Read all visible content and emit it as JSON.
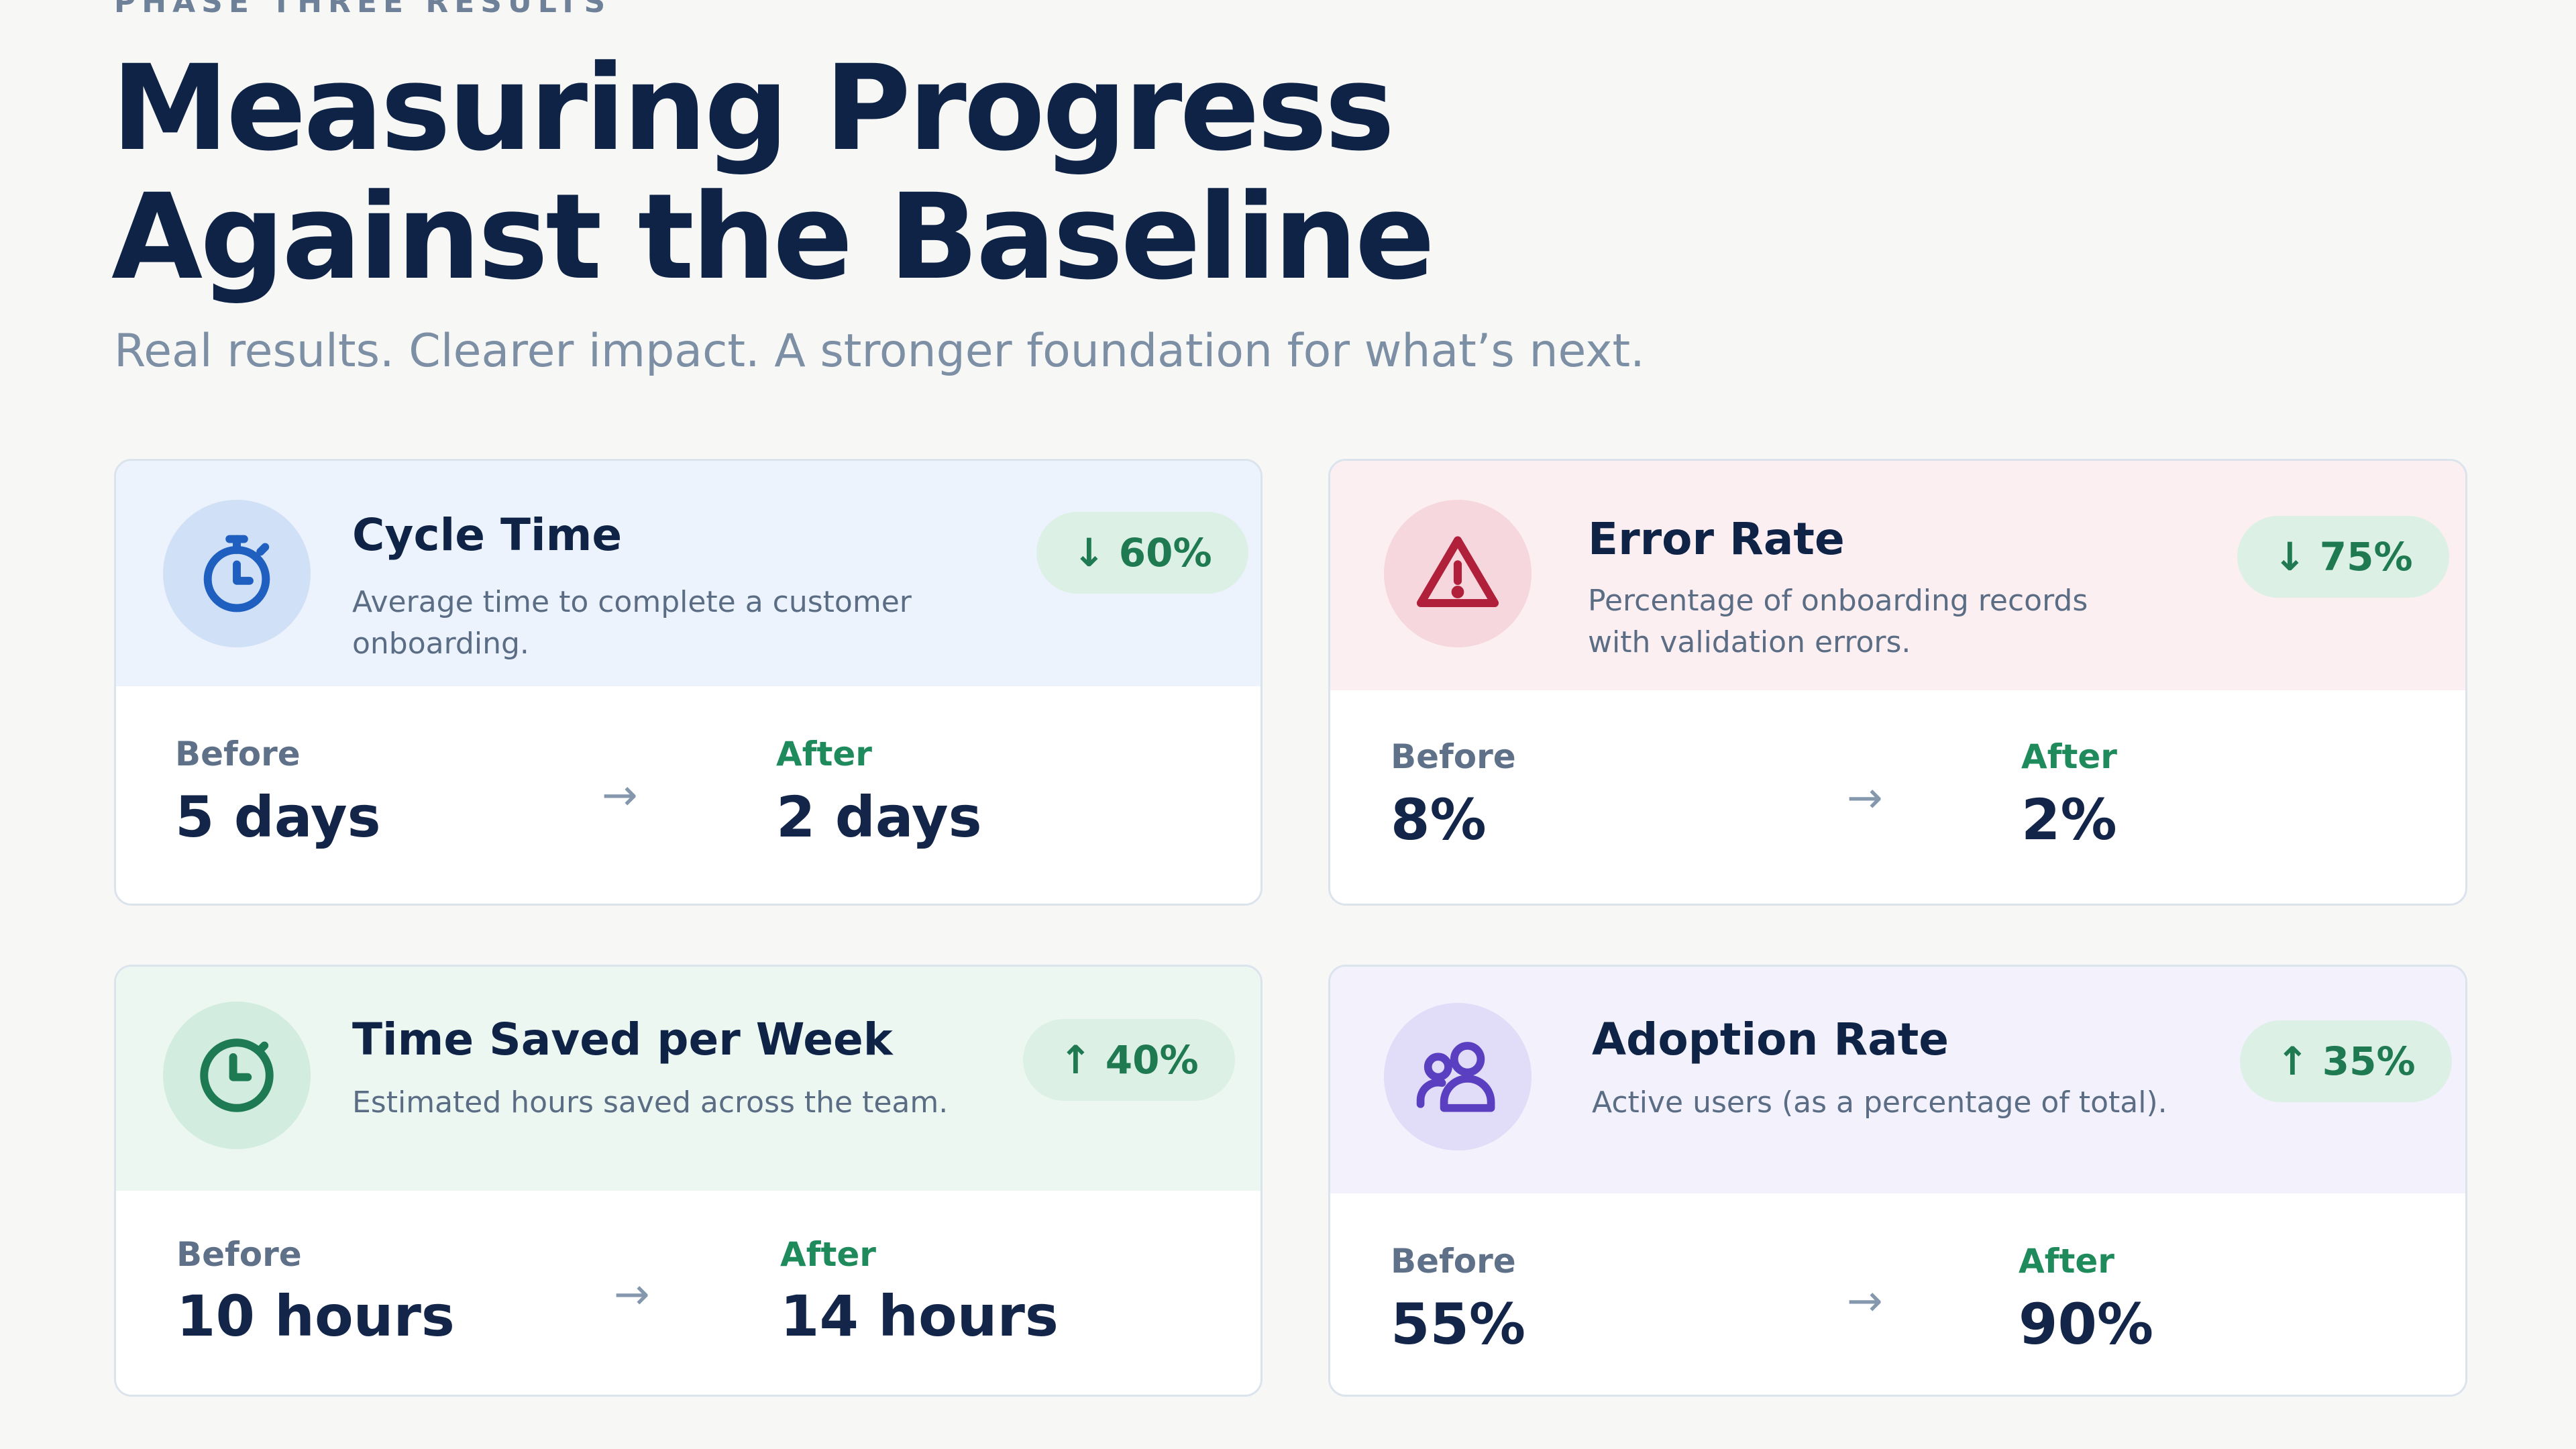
{
  "header": {
    "eyebrow": "PHASE THREE RESULTS",
    "title_line1": "Measuring Progress",
    "title_line2": "Against the Baseline",
    "subtitle": "Real results. Clearer impact. A stronger foundation for what’s next."
  },
  "labels": {
    "before": "Before",
    "after": "After",
    "arrow": "→"
  },
  "cards": [
    {
      "title": "Cycle Time",
      "description": "Average time to complete a customer onboarding.",
      "badge": "↓ 60%",
      "before": "5 days",
      "after": "2 days",
      "icon": "stopwatch-icon",
      "tint": "#edf3fc",
      "icon_bg": "#cfe0f7",
      "icon_color": "#1f5fbf"
    },
    {
      "title": "Error Rate",
      "description": "Percentage of onboarding records with validation errors.",
      "badge": "↓ 75%",
      "before": "8%",
      "after": "2%",
      "icon": "warning-icon",
      "tint": "#fbeff2",
      "icon_bg": "#f6d7de",
      "icon_color": "#b0203a"
    },
    {
      "title": "Time Saved per Week",
      "description": "Estimated hours saved across the team.",
      "badge": "↑ 40%",
      "before": "10 hours",
      "after": "14 hours",
      "icon": "clock-icon",
      "tint": "#edf7f2",
      "icon_bg": "#d2ecdf",
      "icon_color": "#1d7a52"
    },
    {
      "title": "Adoption Rate",
      "description": "Active users (as a percentage of total).",
      "badge": "↑ 35%",
      "before": "55%",
      "after": "90%",
      "icon": "users-icon",
      "tint": "#f2f1fc",
      "icon_bg": "#e1dcf7",
      "icon_color": "#5a3fc0"
    }
  ],
  "colors": {
    "title": "#0f2346",
    "badge_bg": "#dcf0e6",
    "badge_text": "#1f7a52",
    "after_label": "#1f8a5b"
  }
}
